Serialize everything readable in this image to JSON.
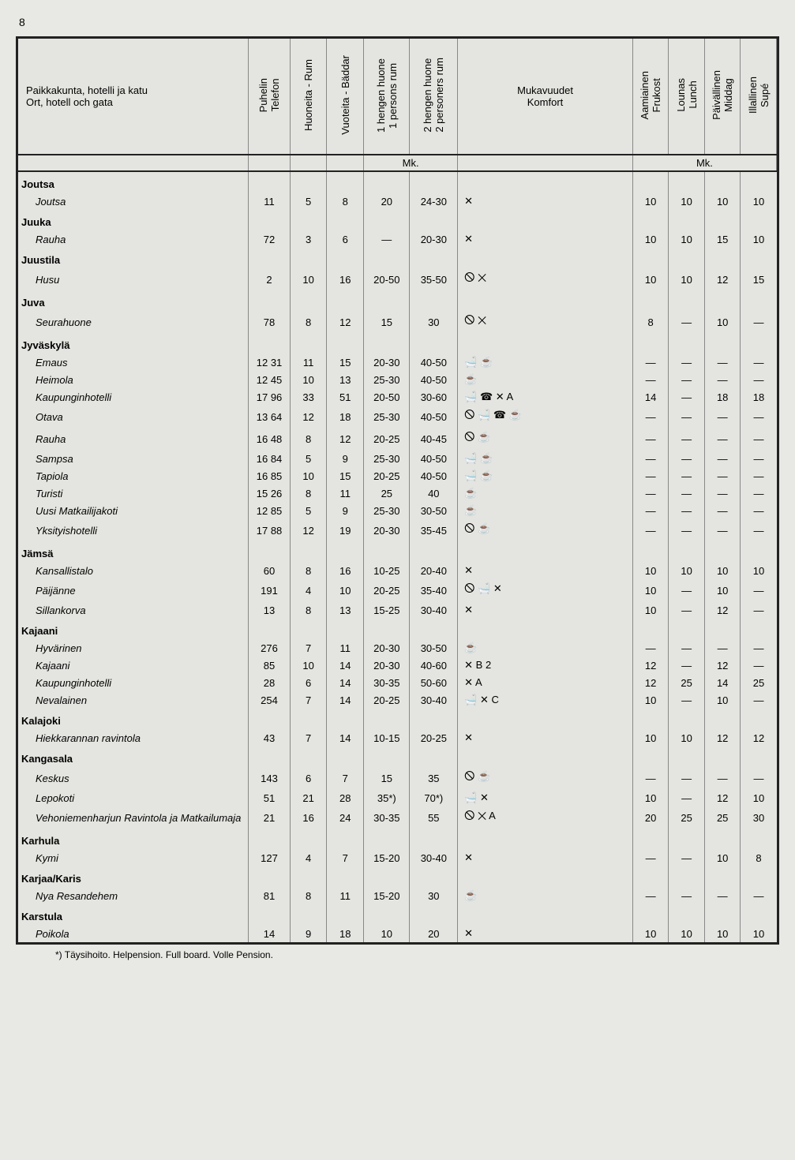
{
  "page_number": "8",
  "header": {
    "col_name": "Paikkakunta, hotelli ja katu\nOrt, hotell och gata",
    "col_tel": "Puhelin\nTelefon",
    "col_rum": "Huoneita - Rum",
    "col_bed": "Vuoteita - Bäddar",
    "col_p1": "1 hengen huone\n1 persons rum",
    "col_p2": "2 hengen huone\n2 personers rum",
    "col_kom": "Mukavuudet\nKomfort",
    "col_a": "Aamiainen\nFrukost",
    "col_l": "Lounas\nLunch",
    "col_p": "Päivällinen\nMiddag",
    "col_i": "Illallinen\nSupé",
    "mk": "Mk."
  },
  "rows": [
    {
      "t": "s",
      "name": "Joutsa"
    },
    {
      "t": "h",
      "name": "Joutsa",
      "tel": "11",
      "rum": "5",
      "bed": "8",
      "p1": "20",
      "p2": "24-30",
      "kom": "✕",
      "a": "10",
      "l": "10",
      "p": "10",
      "i": "10"
    },
    {
      "t": "s",
      "name": "Juuka"
    },
    {
      "t": "h",
      "name": "Rauha",
      "tel": "72",
      "rum": "3",
      "bed": "6",
      "p1": "—",
      "p2": "20-30",
      "kom": "✕",
      "a": "10",
      "l": "10",
      "p": "15",
      "i": "10"
    },
    {
      "t": "s",
      "name": "Juustila"
    },
    {
      "t": "h",
      "name": "Husu",
      "tel": "2",
      "rum": "10",
      "bed": "16",
      "p1": "20-50",
      "p2": "35-50",
      "kom": "🛇 ✕",
      "a": "10",
      "l": "10",
      "p": "12",
      "i": "15"
    },
    {
      "t": "s",
      "name": "Juva"
    },
    {
      "t": "h",
      "name": "Seurahuone",
      "tel": "78",
      "rum": "8",
      "bed": "12",
      "p1": "15",
      "p2": "30",
      "kom": "🛇 ✕",
      "a": "8",
      "l": "—",
      "p": "10",
      "i": "—"
    },
    {
      "t": "s",
      "name": "Jyväskylä"
    },
    {
      "t": "h",
      "name": "Emaus",
      "tel": "12 31",
      "rum": "11",
      "bed": "15",
      "p1": "20-30",
      "p2": "40-50",
      "kom": "🛁 ☕",
      "a": "—",
      "l": "—",
      "p": "—",
      "i": "—"
    },
    {
      "t": "h",
      "name": "Heimola",
      "tel": "12 45",
      "rum": "10",
      "bed": "13",
      "p1": "25-30",
      "p2": "40-50",
      "kom": "☕",
      "a": "—",
      "l": "—",
      "p": "—",
      "i": "—"
    },
    {
      "t": "h",
      "name": "Kaupunginhotelli",
      "tel": "17 96",
      "rum": "33",
      "bed": "51",
      "p1": "20-50",
      "p2": "30-60",
      "kom": "🛁 ☎ ✕ A",
      "a": "14",
      "l": "—",
      "p": "18",
      "i": "18"
    },
    {
      "t": "h",
      "name": "Otava",
      "tel": "13 64",
      "rum": "12",
      "bed": "18",
      "p1": "25-30",
      "p2": "40-50",
      "kom": "🛇 🛁 ☎ ☕",
      "a": "—",
      "l": "—",
      "p": "—",
      "i": "—"
    },
    {
      "t": "h",
      "name": "Rauha",
      "tel": "16 48",
      "rum": "8",
      "bed": "12",
      "p1": "20-25",
      "p2": "40-45",
      "kom": "🛇 ☕",
      "a": "—",
      "l": "—",
      "p": "—",
      "i": "—"
    },
    {
      "t": "h",
      "name": "Sampsa",
      "tel": "16 84",
      "rum": "5",
      "bed": "9",
      "p1": "25-30",
      "p2": "40-50",
      "kom": "🛁 ☕",
      "a": "—",
      "l": "—",
      "p": "—",
      "i": "—"
    },
    {
      "t": "h",
      "name": "Tapiola",
      "tel": "16 85",
      "rum": "10",
      "bed": "15",
      "p1": "20-25",
      "p2": "40-50",
      "kom": "🛁 ☕",
      "a": "—",
      "l": "—",
      "p": "—",
      "i": "—"
    },
    {
      "t": "h",
      "name": "Turisti",
      "tel": "15 26",
      "rum": "8",
      "bed": "11",
      "p1": "25",
      "p2": "40",
      "kom": "☕",
      "a": "—",
      "l": "—",
      "p": "—",
      "i": "—"
    },
    {
      "t": "h",
      "name": "Uusi Matkailijakoti",
      "tel": "12 85",
      "rum": "5",
      "bed": "9",
      "p1": "25-30",
      "p2": "30-50",
      "kom": "☕",
      "a": "—",
      "l": "—",
      "p": "—",
      "i": "—"
    },
    {
      "t": "h",
      "name": "Yksityishotelli",
      "tel": "17 88",
      "rum": "12",
      "bed": "19",
      "p1": "20-30",
      "p2": "35-45",
      "kom": "🛇 ☕",
      "a": "—",
      "l": "—",
      "p": "—",
      "i": "—"
    },
    {
      "t": "s",
      "name": "Jämsä"
    },
    {
      "t": "h",
      "name": "Kansallistalo",
      "tel": "60",
      "rum": "8",
      "bed": "16",
      "p1": "10-25",
      "p2": "20-40",
      "kom": "✕",
      "a": "10",
      "l": "10",
      "p": "10",
      "i": "10"
    },
    {
      "t": "h",
      "name": "Päijänne",
      "tel": "191",
      "rum": "4",
      "bed": "10",
      "p1": "20-25",
      "p2": "35-40",
      "kom": "🛇 🛁 ✕",
      "a": "10",
      "l": "—",
      "p": "10",
      "i": "—"
    },
    {
      "t": "h",
      "name": "Sillankorva",
      "tel": "13",
      "rum": "8",
      "bed": "13",
      "p1": "15-25",
      "p2": "30-40",
      "kom": "✕",
      "a": "10",
      "l": "—",
      "p": "12",
      "i": "—"
    },
    {
      "t": "s",
      "name": "Kajaani"
    },
    {
      "t": "h",
      "name": "Hyvärinen",
      "tel": "276",
      "rum": "7",
      "bed": "11",
      "p1": "20-30",
      "p2": "30-50",
      "kom": "☕",
      "a": "—",
      "l": "—",
      "p": "—",
      "i": "—"
    },
    {
      "t": "h",
      "name": "Kajaani",
      "tel": "85",
      "rum": "10",
      "bed": "14",
      "p1": "20-30",
      "p2": "40-60",
      "kom": "✕ B 2",
      "a": "12",
      "l": "—",
      "p": "12",
      "i": "—"
    },
    {
      "t": "h",
      "name": "Kaupunginhotelli",
      "tel": "28",
      "rum": "6",
      "bed": "14",
      "p1": "30-35",
      "p2": "50-60",
      "kom": "✕ A",
      "a": "12",
      "l": "25",
      "p": "14",
      "i": "25"
    },
    {
      "t": "h",
      "name": "Nevalainen",
      "tel": "254",
      "rum": "7",
      "bed": "14",
      "p1": "20-25",
      "p2": "30-40",
      "kom": "🛁 ✕ C",
      "a": "10",
      "l": "—",
      "p": "10",
      "i": "—"
    },
    {
      "t": "s",
      "name": "Kalajoki"
    },
    {
      "t": "h",
      "name": "Hiekkarannan ravintola",
      "tel": "43",
      "rum": "7",
      "bed": "14",
      "p1": "10-15",
      "p2": "20-25",
      "kom": "✕",
      "a": "10",
      "l": "10",
      "p": "12",
      "i": "12"
    },
    {
      "t": "s",
      "name": "Kangasala"
    },
    {
      "t": "h",
      "name": "Keskus",
      "tel": "143",
      "rum": "6",
      "bed": "7",
      "p1": "15",
      "p2": "35",
      "kom": "🛇 ☕",
      "a": "—",
      "l": "—",
      "p": "—",
      "i": "—"
    },
    {
      "t": "h",
      "name": "Lepokoti",
      "tel": "51",
      "rum": "21",
      "bed": "28",
      "p1": "35*)",
      "p2": "70*)",
      "kom": "🛁 ✕",
      "a": "10",
      "l": "—",
      "p": "12",
      "i": "10"
    },
    {
      "t": "h",
      "name": "Vehoniemenharjun Ravintola ja Matkailumaja",
      "tel": "21",
      "rum": "16",
      "bed": "24",
      "p1": "30-35",
      "p2": "55",
      "kom": "🛇 ✕ A",
      "a": "20",
      "l": "25",
      "p": "25",
      "i": "30"
    },
    {
      "t": "s",
      "name": "Karhula"
    },
    {
      "t": "h",
      "name": "Kymi",
      "tel": "127",
      "rum": "4",
      "bed": "7",
      "p1": "15-20",
      "p2": "30-40",
      "kom": "✕",
      "a": "—",
      "l": "—",
      "p": "10",
      "i": "8"
    },
    {
      "t": "s",
      "name": "Karjaa/Karis"
    },
    {
      "t": "h",
      "name": "Nya Resandehem",
      "tel": "81",
      "rum": "8",
      "bed": "11",
      "p1": "15-20",
      "p2": "30",
      "kom": "☕",
      "a": "—",
      "l": "—",
      "p": "—",
      "i": "—"
    },
    {
      "t": "s",
      "name": "Karstula"
    },
    {
      "t": "h",
      "name": "Poikola",
      "tel": "14",
      "rum": "9",
      "bed": "18",
      "p1": "10",
      "p2": "20",
      "kom": "✕",
      "a": "10",
      "l": "10",
      "p": "10",
      "i": "10"
    }
  ],
  "footnote": "*) Täysihoito. Helpension. Full board. Volle Pension."
}
